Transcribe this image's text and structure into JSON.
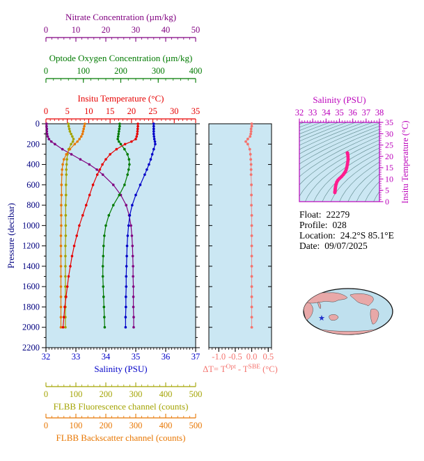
{
  "info": {
    "float_label": "Float:",
    "float_value": "22279",
    "profile_label": "Profile:",
    "profile_value": "028",
    "location_label": "Location:",
    "location_value": "24.2°S  85.1°E",
    "date_label": "Date:",
    "date_value": "09/07/2025"
  },
  "chart_data": [
    {
      "id": "profiles",
      "type": "line",
      "plot_bg": "#CBE7F3",
      "y_axis": {
        "label": "Pressure (decibar)",
        "min": 0,
        "max": 2200,
        "ticks": [
          0,
          200,
          400,
          600,
          800,
          1000,
          1200,
          1400,
          1600,
          1800,
          2000,
          2200
        ],
        "color": "#000080"
      },
      "pressure_levels": [
        0,
        25,
        50,
        75,
        100,
        125,
        150,
        175,
        200,
        250,
        300,
        350,
        400,
        450,
        500,
        600,
        700,
        800,
        900,
        1000,
        1100,
        1200,
        1300,
        1400,
        1500,
        1600,
        1700,
        1800,
        1900,
        2000
      ],
      "series": [
        {
          "name": "nitrate",
          "title": "Nitrate Concentration (µm/kg)",
          "color": "#800080",
          "min": 0,
          "max": 50,
          "ticks": [
            0,
            10,
            20,
            30,
            40,
            50
          ],
          "minor_step": 2,
          "values": [
            0.2,
            0.2,
            0.3,
            0.3,
            0.4,
            0.6,
            1.0,
            1.8,
            3.0,
            5.5,
            8.5,
            11.5,
            14.5,
            17.0,
            19.0,
            22.5,
            25.0,
            26.8,
            27.8,
            28.4,
            28.7,
            28.9,
            29.0,
            29.1,
            29.1,
            29.2,
            29.2,
            29.2,
            29.3,
            29.3
          ]
        },
        {
          "name": "oxygen",
          "title": "Optode Oxygen Concentration (µm/kg)",
          "color": "#007A00",
          "min": 0,
          "max": 400,
          "ticks": [
            0,
            100,
            200,
            300,
            400
          ],
          "minor_step": 20,
          "values": [
            197,
            197,
            196,
            195,
            194,
            193,
            192,
            195,
            200,
            210,
            218,
            222,
            223,
            221,
            218,
            210,
            196,
            180,
            168,
            160,
            156,
            154,
            153,
            152,
            152,
            153,
            154,
            155,
            156,
            157
          ]
        },
        {
          "name": "temperature",
          "title": "Insitu Temperature (°C)",
          "color": "#E60000",
          "min": 0,
          "max": 35,
          "ticks": [
            0,
            5,
            10,
            15,
            20,
            25,
            30,
            35
          ],
          "minor_step": 1,
          "values": [
            21.5,
            21.5,
            21.45,
            21.4,
            21.35,
            21.2,
            21.0,
            20.0,
            18.5,
            16.5,
            15.0,
            14.0,
            13.2,
            12.6,
            12.0,
            11.0,
            10.2,
            9.4,
            8.6,
            7.8,
            7.2,
            6.6,
            6.1,
            5.7,
            5.3,
            5.0,
            4.7,
            4.4,
            4.2,
            4.0
          ]
        },
        {
          "name": "salinity",
          "title": "Salinity (PSU)",
          "color": "#0000C8",
          "min": 32,
          "max": 37,
          "ticks": [
            32,
            33,
            34,
            35,
            36,
            37
          ],
          "minor_step": 0.1,
          "values": [
            35.6,
            35.6,
            35.6,
            35.6,
            35.6,
            35.61,
            35.62,
            35.64,
            35.65,
            35.6,
            35.55,
            35.5,
            35.44,
            35.37,
            35.3,
            35.15,
            35.0,
            34.88,
            34.8,
            34.76,
            34.73,
            34.71,
            34.7,
            34.69,
            34.68,
            34.68,
            34.67,
            34.67,
            34.66,
            34.66
          ]
        },
        {
          "name": "fluorescence",
          "title": "FLBB Fluorescence channel (counts)",
          "color": "#A3A300",
          "min": 0,
          "max": 500,
          "ticks": [
            0,
            100,
            200,
            300,
            400,
            500
          ],
          "minor_step": 20,
          "values": [
            75,
            76,
            78,
            80,
            84,
            88,
            92,
            90,
            84,
            76,
            72,
            70,
            69,
            68,
            68,
            67,
            67,
            66,
            66,
            66,
            66,
            65,
            65,
            65,
            65,
            65,
            65,
            65,
            65,
            65
          ]
        },
        {
          "name": "backscatter",
          "title": "FLBB Backscatter channel (counts)",
          "color": "#E87600",
          "min": 0,
          "max": 500,
          "ticks": [
            0,
            100,
            200,
            300,
            400,
            500
          ],
          "minor_step": 20,
          "values": [
            130,
            128,
            126,
            124,
            122,
            118,
            112,
            105,
            96,
            80,
            68,
            60,
            56,
            54,
            53,
            52,
            52,
            51,
            51,
            51,
            50,
            50,
            50,
            50,
            50,
            50,
            50,
            50,
            50,
            50
          ]
        }
      ]
    },
    {
      "id": "delta_t",
      "type": "scatter",
      "color": "#F4736E",
      "x_axis": {
        "min": -1.3,
        "max": 0.6,
        "ticks": [
          -1.0,
          -0.5,
          0.0,
          0.5
        ],
        "tick_labels": [
          "-1.0",
          "-0.5",
          "0.0",
          "0.5"
        ],
        "minor_step": 0.1
      },
      "label_parts": {
        "prefix": "ΔT= T",
        "sup1": "Opt",
        "mid": " - T",
        "sup2": "SBE",
        "suffix": " (°C)"
      },
      "values": [
        0.0,
        0.0,
        -0.02,
        -0.02,
        -0.03,
        -0.05,
        -0.12,
        -0.18,
        -0.12,
        -0.06,
        -0.04,
        -0.03,
        -0.02,
        -0.02,
        -0.02,
        -0.01,
        -0.01,
        -0.01,
        0.0,
        0.0,
        0.0,
        0.0,
        0.0,
        0.0,
        0.0,
        0.0,
        0.0,
        0.0,
        0.0,
        0.0
      ]
    },
    {
      "id": "ts_diagram",
      "type": "line",
      "x_axis": {
        "label": "Salinity (PSU)",
        "min": 32,
        "max": 38,
        "ticks": [
          32,
          33,
          34,
          35,
          36,
          37,
          38
        ],
        "minor_step": 0.2
      },
      "y_axis": {
        "label": "Insitu Temperature (°C)",
        "min": 0,
        "max": 35,
        "ticks": [
          0,
          5,
          10,
          15,
          20,
          25,
          30,
          35
        ],
        "minor_step": 1
      },
      "axis_color": "#BB00BB",
      "curve_color": "#FF1C8E",
      "contour_color": "#2F5F5F",
      "sigma_contours": {
        "min": 18.5,
        "max": 30.5,
        "step": 0.5
      },
      "note": "curve points are (salinity, temperature) pairs taken from the profiles series"
    }
  ]
}
